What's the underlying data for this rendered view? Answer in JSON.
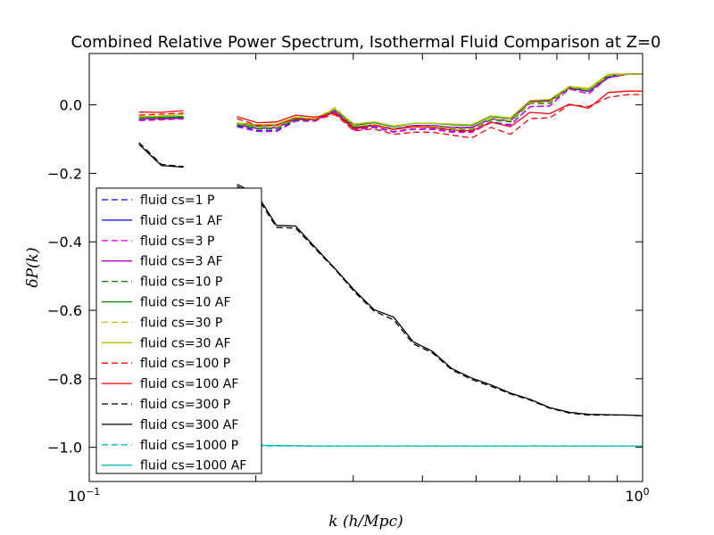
{
  "chart_data": {
    "type": "line",
    "title": "Combined Relative Power Spectrum, Isothermal Fluid Comparison at Z=0",
    "xlabel": "k (h/Mpc)",
    "ylabel": "δP(k)",
    "xscale": "log",
    "xlim": [
      0.1,
      1.0
    ],
    "ylim": [
      -1.1,
      0.15
    ],
    "grid": false,
    "legend_position": "lower-left",
    "xticks": [
      {
        "value": 0.1,
        "base": "10",
        "exp": "−1"
      },
      {
        "value": 1.0,
        "base": "10",
        "exp": "0"
      }
    ],
    "yticks": [
      {
        "value": 0.0,
        "label": "0.0"
      },
      {
        "value": -0.2,
        "label": "−0.2"
      },
      {
        "value": -0.4,
        "label": "−0.4"
      },
      {
        "value": -0.6,
        "label": "−0.6"
      },
      {
        "value": -0.8,
        "label": "−0.8"
      },
      {
        "value": -1.0,
        "label": "−1.0"
      }
    ],
    "series": [
      {
        "name": "fluid cs=1 P",
        "color": "#0000ff",
        "dash": true,
        "x": [
          0.123,
          0.135,
          0.148,
          null,
          0.185,
          0.201,
          0.218,
          0.236,
          0.256,
          0.278,
          0.301,
          0.327,
          0.355,
          0.385,
          0.417,
          0.452,
          0.491,
          0.532,
          0.577,
          0.626,
          0.679,
          0.737,
          0.799,
          0.867,
          0.94,
          1.0
        ],
        "y": [
          -0.045,
          -0.043,
          -0.04,
          null,
          -0.062,
          -0.075,
          -0.075,
          -0.046,
          -0.047,
          -0.018,
          -0.072,
          -0.064,
          -0.078,
          -0.07,
          -0.07,
          -0.078,
          -0.079,
          -0.05,
          -0.058,
          -0.005,
          -0.003,
          0.047,
          0.033,
          0.082,
          0.09,
          0.09
        ]
      },
      {
        "name": "fluid cs=1 AF",
        "color": "#0000ff",
        "dash": false,
        "x": [
          0.123,
          0.135,
          0.148,
          null,
          0.185,
          0.201,
          0.218,
          0.236,
          0.256,
          0.278,
          0.301,
          0.327,
          0.355,
          0.385,
          0.417,
          0.452,
          0.491,
          0.532,
          0.577,
          0.626,
          0.679,
          0.737,
          0.799,
          0.867,
          0.94,
          1.0
        ],
        "y": [
          -0.04,
          -0.04,
          -0.038,
          null,
          -0.058,
          -0.068,
          -0.066,
          -0.042,
          -0.042,
          -0.02,
          -0.066,
          -0.058,
          -0.07,
          -0.06,
          -0.06,
          -0.066,
          -0.066,
          -0.04,
          -0.046,
          0.01,
          0.012,
          0.05,
          0.04,
          0.08,
          0.09,
          0.09
        ]
      },
      {
        "name": "fluid cs=3 P",
        "color": "#ff00ff",
        "dash": true,
        "x": [
          0.123,
          0.135,
          0.148,
          null,
          0.185,
          0.201,
          0.218,
          0.236,
          0.256,
          0.278,
          0.301,
          0.327,
          0.355,
          0.385,
          0.417,
          0.452,
          0.491,
          0.532,
          0.577,
          0.626,
          0.679,
          0.737,
          0.799,
          0.867,
          0.94,
          1.0
        ],
        "y": [
          -0.046,
          -0.044,
          -0.041,
          null,
          -0.064,
          -0.078,
          -0.078,
          -0.048,
          -0.048,
          -0.019,
          -0.074,
          -0.066,
          -0.08,
          -0.072,
          -0.072,
          -0.08,
          -0.081,
          -0.052,
          -0.06,
          -0.006,
          -0.004,
          0.046,
          0.032,
          0.08,
          0.09,
          0.09
        ]
      },
      {
        "name": "fluid cs=3 AF",
        "color": "#bf00bf",
        "dash": false,
        "x": [
          0.123,
          0.135,
          0.148,
          null,
          0.185,
          0.201,
          0.218,
          0.236,
          0.256,
          0.278,
          0.301,
          0.327,
          0.355,
          0.385,
          0.417,
          0.452,
          0.491,
          0.532,
          0.577,
          0.626,
          0.679,
          0.737,
          0.799,
          0.867,
          0.94,
          1.0
        ],
        "y": [
          -0.041,
          -0.041,
          -0.039,
          null,
          -0.059,
          -0.069,
          -0.067,
          -0.043,
          -0.043,
          -0.021,
          -0.067,
          -0.059,
          -0.071,
          -0.061,
          -0.061,
          -0.067,
          -0.067,
          -0.041,
          -0.047,
          0.009,
          0.011,
          0.049,
          0.039,
          0.079,
          0.09,
          0.09
        ]
      },
      {
        "name": "fluid cs=10 P",
        "color": "#008000",
        "dash": true,
        "x": [
          0.123,
          0.135,
          0.148,
          null,
          0.185,
          0.201,
          0.218,
          0.236,
          0.256,
          0.278,
          0.301,
          0.327,
          0.355,
          0.385,
          0.417,
          0.452,
          0.491,
          0.532,
          0.577,
          0.626,
          0.679,
          0.737,
          0.799,
          0.867,
          0.94,
          1.0
        ],
        "y": [
          -0.04,
          -0.039,
          -0.037,
          null,
          -0.058,
          -0.07,
          -0.07,
          -0.044,
          -0.045,
          -0.012,
          -0.066,
          -0.06,
          -0.072,
          -0.064,
          -0.064,
          -0.07,
          -0.072,
          -0.044,
          -0.05,
          0.004,
          0.004,
          0.05,
          0.04,
          0.084,
          0.09,
          0.09
        ]
      },
      {
        "name": "fluid cs=10 AF",
        "color": "#008000",
        "dash": false,
        "x": [
          0.123,
          0.135,
          0.148,
          null,
          0.185,
          0.201,
          0.218,
          0.236,
          0.256,
          0.278,
          0.301,
          0.327,
          0.355,
          0.385,
          0.417,
          0.452,
          0.491,
          0.532,
          0.577,
          0.626,
          0.679,
          0.737,
          0.799,
          0.867,
          0.94,
          1.0
        ],
        "y": [
          -0.036,
          -0.036,
          -0.034,
          null,
          -0.054,
          -0.062,
          -0.06,
          -0.038,
          -0.04,
          -0.014,
          -0.06,
          -0.052,
          -0.064,
          -0.054,
          -0.054,
          -0.058,
          -0.06,
          -0.034,
          -0.04,
          0.012,
          0.014,
          0.052,
          0.046,
          0.086,
          0.09,
          0.09
        ]
      },
      {
        "name": "fluid cs=30 P",
        "color": "#bfbf00",
        "dash": true,
        "x": [
          0.123,
          0.135,
          0.148,
          null,
          0.185,
          0.201,
          0.218,
          0.236,
          0.256,
          0.278,
          0.301,
          0.327,
          0.355,
          0.385,
          0.417,
          0.452,
          0.491,
          0.532,
          0.577,
          0.626,
          0.679,
          0.737,
          0.799,
          0.867,
          0.94,
          1.0
        ],
        "y": [
          -0.035,
          -0.032,
          -0.028,
          null,
          -0.054,
          -0.066,
          -0.066,
          -0.04,
          -0.042,
          -0.008,
          -0.062,
          -0.058,
          -0.07,
          -0.062,
          -0.062,
          -0.068,
          -0.07,
          -0.04,
          -0.046,
          0.006,
          0.008,
          0.052,
          0.044,
          0.086,
          0.09,
          0.09
        ]
      },
      {
        "name": "fluid cs=30 AF",
        "color": "#bfbf00",
        "dash": false,
        "x": [
          0.123,
          0.135,
          0.148,
          null,
          0.185,
          0.201,
          0.218,
          0.236,
          0.256,
          0.278,
          0.301,
          0.327,
          0.355,
          0.385,
          0.417,
          0.452,
          0.491,
          0.532,
          0.577,
          0.626,
          0.679,
          0.737,
          0.799,
          0.867,
          0.94,
          1.0
        ],
        "y": [
          -0.034,
          -0.033,
          -0.027,
          null,
          -0.052,
          -0.058,
          -0.056,
          -0.036,
          -0.04,
          -0.012,
          -0.056,
          -0.05,
          -0.062,
          -0.054,
          -0.054,
          -0.056,
          -0.058,
          -0.032,
          -0.038,
          0.013,
          0.016,
          0.054,
          0.048,
          0.09,
          0.09,
          0.09
        ]
      },
      {
        "name": "fluid cs=100 P",
        "color": "#ff0000",
        "dash": true,
        "x": [
          0.123,
          0.135,
          0.148,
          null,
          0.185,
          0.201,
          0.218,
          0.236,
          0.256,
          0.278,
          0.301,
          0.327,
          0.355,
          0.385,
          0.417,
          0.452,
          0.491,
          0.532,
          0.577,
          0.626,
          0.679,
          0.737,
          0.799,
          0.867,
          0.94,
          1.0
        ],
        "y": [
          -0.03,
          -0.027,
          -0.024,
          null,
          -0.04,
          -0.06,
          -0.06,
          -0.04,
          -0.044,
          -0.028,
          -0.076,
          -0.07,
          -0.086,
          -0.08,
          -0.08,
          -0.088,
          -0.097,
          -0.066,
          -0.086,
          -0.04,
          -0.038,
          0.0,
          -0.005,
          0.022,
          0.03,
          0.03
        ]
      },
      {
        "name": "fluid cs=100 AF",
        "color": "#ff0000",
        "dash": false,
        "x": [
          0.123,
          0.135,
          0.148,
          null,
          0.185,
          0.201,
          0.218,
          0.236,
          0.256,
          0.278,
          0.301,
          0.327,
          0.355,
          0.385,
          0.417,
          0.452,
          0.491,
          0.532,
          0.577,
          0.626,
          0.679,
          0.737,
          0.799,
          0.867,
          0.94,
          1.0
        ],
        "y": [
          -0.021,
          -0.022,
          -0.017,
          null,
          -0.034,
          -0.052,
          -0.05,
          -0.03,
          -0.036,
          -0.024,
          -0.07,
          -0.06,
          -0.072,
          -0.064,
          -0.066,
          -0.074,
          -0.076,
          -0.05,
          -0.064,
          -0.022,
          -0.026,
          0.002,
          -0.01,
          0.036,
          0.04,
          0.04
        ]
      },
      {
        "name": "fluid cs=300 P",
        "color": "#000000",
        "dash": true,
        "x": [
          0.123,
          0.135,
          0.148,
          null,
          0.185,
          0.201,
          0.218,
          0.236,
          0.256,
          0.278,
          0.301,
          0.327,
          0.355,
          0.385,
          0.417,
          0.452,
          0.491,
          0.532,
          0.577,
          0.626,
          0.679,
          0.737,
          0.799,
          0.867,
          0.94,
          1.0
        ],
        "y": [
          -0.11,
          -0.174,
          -0.18,
          null,
          -0.238,
          -0.268,
          -0.358,
          -0.36,
          -0.42,
          -0.48,
          -0.545,
          -0.602,
          -0.628,
          -0.698,
          -0.724,
          -0.774,
          -0.802,
          -0.822,
          -0.844,
          -0.862,
          -0.886,
          -0.9,
          -0.906,
          -0.906,
          -0.906,
          -0.908
        ]
      },
      {
        "name": "fluid cs=300 AF",
        "color": "#000000",
        "dash": false,
        "x": [
          0.123,
          0.135,
          0.148,
          null,
          0.185,
          0.201,
          0.218,
          0.236,
          0.256,
          0.278,
          0.301,
          0.327,
          0.355,
          0.385,
          0.417,
          0.452,
          0.491,
          0.532,
          0.577,
          0.626,
          0.679,
          0.737,
          0.799,
          0.867,
          0.94,
          1.0
        ],
        "y": [
          -0.115,
          -0.177,
          -0.182,
          null,
          -0.232,
          -0.262,
          -0.352,
          -0.354,
          -0.416,
          -0.478,
          -0.54,
          -0.598,
          -0.62,
          -0.692,
          -0.72,
          -0.77,
          -0.798,
          -0.818,
          -0.842,
          -0.86,
          -0.884,
          -0.898,
          -0.904,
          -0.905,
          -0.906,
          -0.908
        ]
      },
      {
        "name": "fluid cs=1000 P",
        "color": "#00bfbf",
        "dash": true,
        "x": [
          0.123,
          0.15,
          0.185,
          0.22,
          0.26,
          0.3,
          0.4,
          0.5,
          0.6,
          0.7,
          0.8,
          0.9,
          1.0
        ],
        "y": [
          -0.992,
          -0.994,
          -0.995,
          -0.996,
          -0.997,
          -0.997,
          -0.997,
          -0.997,
          -0.997,
          -0.997,
          -0.997,
          -0.997,
          -0.997
        ]
      },
      {
        "name": "fluid cs=1000 AF",
        "color": "#00bfbf",
        "dash": false,
        "x": [
          0.123,
          0.15,
          0.185,
          0.22,
          0.26,
          0.3,
          0.4,
          0.5,
          0.6,
          0.7,
          0.8,
          0.9,
          1.0
        ],
        "y": [
          -0.991,
          -0.993,
          -0.994,
          -0.995,
          -0.996,
          -0.996,
          -0.996,
          -0.996,
          -0.996,
          -0.996,
          -0.996,
          -0.996,
          -0.996
        ]
      }
    ]
  }
}
